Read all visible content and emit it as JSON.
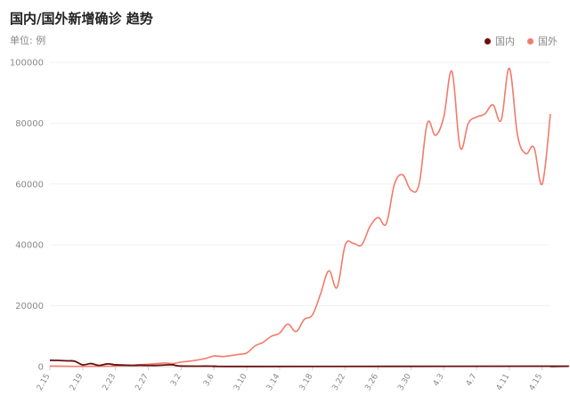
{
  "title": "国内/国外新增确诊 趋势",
  "unit": "单位: 例",
  "legend": [
    {
      "name": "国内",
      "color": "#6b0f0f"
    },
    {
      "name": "国外",
      "color": "#f27b6b"
    }
  ],
  "chart_data": {
    "type": "line",
    "title": "国内/国外新增确诊 趋势",
    "ylabel": "单位: 例",
    "ylim": [
      0,
      100000
    ],
    "yticks": [
      0,
      20000,
      40000,
      60000,
      80000,
      100000
    ],
    "xlim": [
      "2.15",
      "4.16"
    ],
    "xticks": [
      "2.15",
      "2.19",
      "2.23",
      "2.27",
      "3.2",
      "3.6",
      "3.10",
      "3.14",
      "3.18",
      "3.22",
      "3.26",
      "3.30",
      "4.3",
      "4.7",
      "4.11",
      "4.15"
    ],
    "legend_position": "top-right",
    "grid": true,
    "series": [
      {
        "name": "国内",
        "color": "#6b0f0f",
        "x": [
          "2.15",
          "2.16",
          "2.17",
          "2.18",
          "2.19",
          "2.20",
          "2.21",
          "2.22",
          "2.23",
          "2.24",
          "2.25",
          "2.26",
          "2.27",
          "2.28",
          "2.29",
          "3.1",
          "3.2",
          "3.6",
          "3.10",
          "4.15",
          "4.16"
        ],
        "values": [
          2100,
          2050,
          1900,
          1800,
          600,
          1000,
          400,
          900,
          600,
          500,
          400,
          450,
          400,
          400,
          550,
          600,
          200,
          150,
          50,
          150,
          50
        ]
      },
      {
        "name": "国外",
        "color": "#f27b6b",
        "x": [
          "2.15",
          "2.19",
          "2.23",
          "2.27",
          "2.29",
          "3.1",
          "3.2",
          "3.3",
          "3.4",
          "3.5",
          "3.6",
          "3.7",
          "3.8",
          "3.9",
          "3.10",
          "3.11",
          "3.12",
          "3.13",
          "3.14",
          "3.15",
          "3.16",
          "3.17",
          "3.18",
          "3.19",
          "3.20",
          "3.21",
          "3.22",
          "3.23",
          "3.24",
          "3.25",
          "3.26",
          "3.27",
          "3.28",
          "3.29",
          "3.30",
          "3.31",
          "4.1",
          "4.2",
          "4.3",
          "4.4",
          "4.5",
          "4.6",
          "4.7",
          "4.8",
          "4.9",
          "4.10",
          "4.11",
          "4.12",
          "4.13",
          "4.14",
          "4.15",
          "4.16"
        ],
        "values": [
          200,
          100,
          200,
          800,
          1200,
          1000,
          1500,
          1800,
          2200,
          2700,
          3500,
          3300,
          3600,
          4000,
          4500,
          6800,
          8000,
          10000,
          11000,
          14000,
          11500,
          15500,
          17000,
          24000,
          31500,
          26000,
          40000,
          40500,
          40000,
          46000,
          49000,
          47000,
          60000,
          63000,
          58000,
          60000,
          80000,
          76000,
          82000,
          97000,
          72000,
          80000,
          82000,
          83000,
          86000,
          81000,
          98000,
          76000,
          70000,
          72000,
          60000,
          83000
        ]
      }
    ]
  }
}
